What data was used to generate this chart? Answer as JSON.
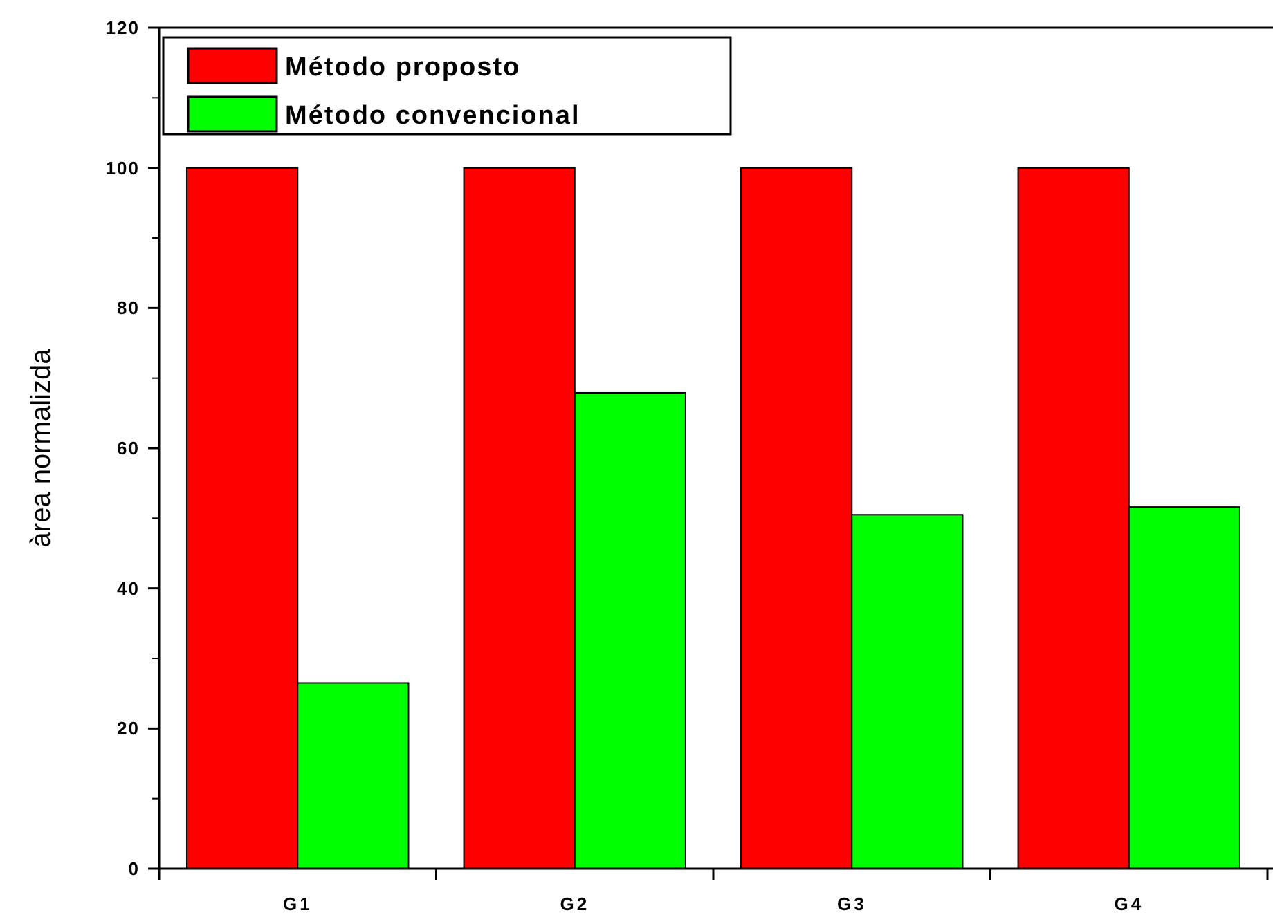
{
  "chart_data": {
    "type": "bar",
    "ylabel": "àrea normalizda",
    "categories": [
      "G1",
      "G2",
      "G3",
      "G4"
    ],
    "series": [
      {
        "name": "Método proposto",
        "color": "#ff0000",
        "values": [
          100,
          100,
          100,
          100
        ]
      },
      {
        "name": "Método convencional",
        "color": "#00ff00",
        "values": [
          26.5,
          67.9,
          50.5,
          51.6
        ]
      }
    ],
    "ylim": [
      0,
      120
    ],
    "yticks": [
      0,
      20,
      40,
      60,
      80,
      100,
      120
    ],
    "legend": "top left",
    "grid": false
  }
}
